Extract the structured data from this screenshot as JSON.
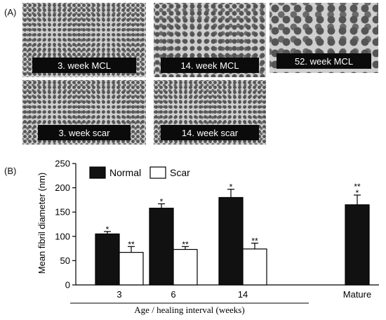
{
  "panel_a": {
    "label": "(A)",
    "images": [
      {
        "caption": "3. week MCL",
        "texture": "fine"
      },
      {
        "caption": "14. week MCL",
        "texture": "medium"
      },
      {
        "caption": "52. week MCL",
        "texture": "coarse"
      },
      {
        "caption": "3. week scar",
        "texture": "fine"
      },
      {
        "caption": "14. week scar",
        "texture": "fine"
      }
    ]
  },
  "panel_b": {
    "label": "(B)"
  },
  "colors": {
    "normal": "#111111",
    "scar": "#ffffff",
    "axis": "#000000"
  },
  "chart_data": {
    "type": "bar",
    "categories": [
      "3",
      "6",
      "14",
      "Mature"
    ],
    "series": [
      {
        "name": "Normal",
        "values": [
          105,
          158,
          180,
          165
        ],
        "errors": [
          5,
          9,
          17,
          20
        ],
        "marks": [
          "*",
          "*",
          "*",
          "**\n*"
        ]
      },
      {
        "name": "Scar",
        "values": [
          67,
          73,
          74,
          null
        ],
        "errors": [
          12,
          6,
          12,
          null
        ],
        "marks": [
          "**",
          "**",
          "**",
          ""
        ]
      }
    ],
    "xlabel": "Age / healing interval (weeks)",
    "ylabel": "Mean fibril diameter (nm)",
    "ylim": [
      0,
      250
    ],
    "yticks": [
      0,
      50,
      100,
      150,
      200,
      250
    ],
    "legend": "top-left",
    "grid": false
  }
}
